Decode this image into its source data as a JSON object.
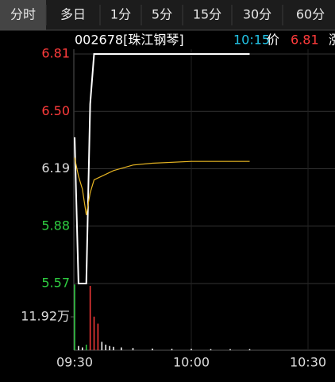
{
  "chart_data": {
    "type": "intraday",
    "tabs": [
      "分时",
      "多日",
      "1分",
      "5分",
      "15分",
      "30分",
      "60分"
    ],
    "selected_tab": 0,
    "header": {
      "code": "002678[珠江钢琴]",
      "time": "10:15",
      "price_label": "价",
      "price": 6.81,
      "change_label": "涨"
    },
    "x": [
      "09:30",
      "09:31",
      "09:32",
      "09:33",
      "09:34",
      "09:35",
      "09:40",
      "09:45",
      "09:50",
      "10:00",
      "10:10",
      "10:15"
    ],
    "series": [
      {
        "color": "#ffffff",
        "values": [
          6.36,
          5.57,
          5.57,
          5.57,
          6.54,
          6.81,
          6.81,
          6.81,
          6.81,
          6.81,
          6.81,
          6.81
        ]
      },
      {
        "color": "#e6b422",
        "values": [
          6.25,
          6.15,
          6.08,
          5.94,
          6.06,
          6.13,
          6.18,
          6.21,
          6.22,
          6.23,
          6.23,
          6.23
        ]
      }
    ],
    "ylim": [
      5.57,
      6.81
    ],
    "yticks": [
      6.81,
      {
        "value": 6.5,
        "label": "6.50"
      },
      6.19,
      5.88,
      5.57
    ],
    "ytick_colors": [
      "#ff3b3b",
      "#ff3b3b",
      "#dddddd",
      "#2ecc40",
      "#2ecc40"
    ],
    "xlim": [
      "09:30",
      "10:30"
    ],
    "xticks": [
      "09:30",
      "10:00",
      "10:30"
    ],
    "volume": {
      "x": [
        "09:30",
        "09:31",
        "09:32",
        "09:33",
        "09:34",
        "09:35",
        "09:36",
        "09:37",
        "09:38",
        "09:39",
        "09:40",
        "09:42",
        "09:45",
        "09:50",
        "09:55",
        "10:00",
        "10:05",
        "10:10",
        "10:15"
      ],
      "values": [
        23.5,
        1.5,
        1.0,
        2.0,
        23.0,
        12.0,
        9.5,
        3.0,
        2.0,
        1.5,
        1.2,
        1.0,
        0.8,
        0.6,
        0.5,
        0.5,
        0.4,
        0.4,
        0.4
      ],
      "colors": [
        "#2ecc40",
        "#ffffff",
        "#ffffff",
        "#2ecc40",
        "#ff3b3b",
        "#ff3b3b",
        "#ff3b3b",
        "#ffffff",
        "#ffffff",
        "#ffffff",
        "#ffffff",
        "#ffffff",
        "#ffffff",
        "#ffffff",
        "#ffffff",
        "#ffffff",
        "#ffffff",
        "#ffffff",
        "#ffffff"
      ],
      "ylim": [
        0,
        23.84
      ],
      "yticks": [
        {
          "value": 11.92,
          "label": "11.92万"
        }
      ]
    }
  }
}
